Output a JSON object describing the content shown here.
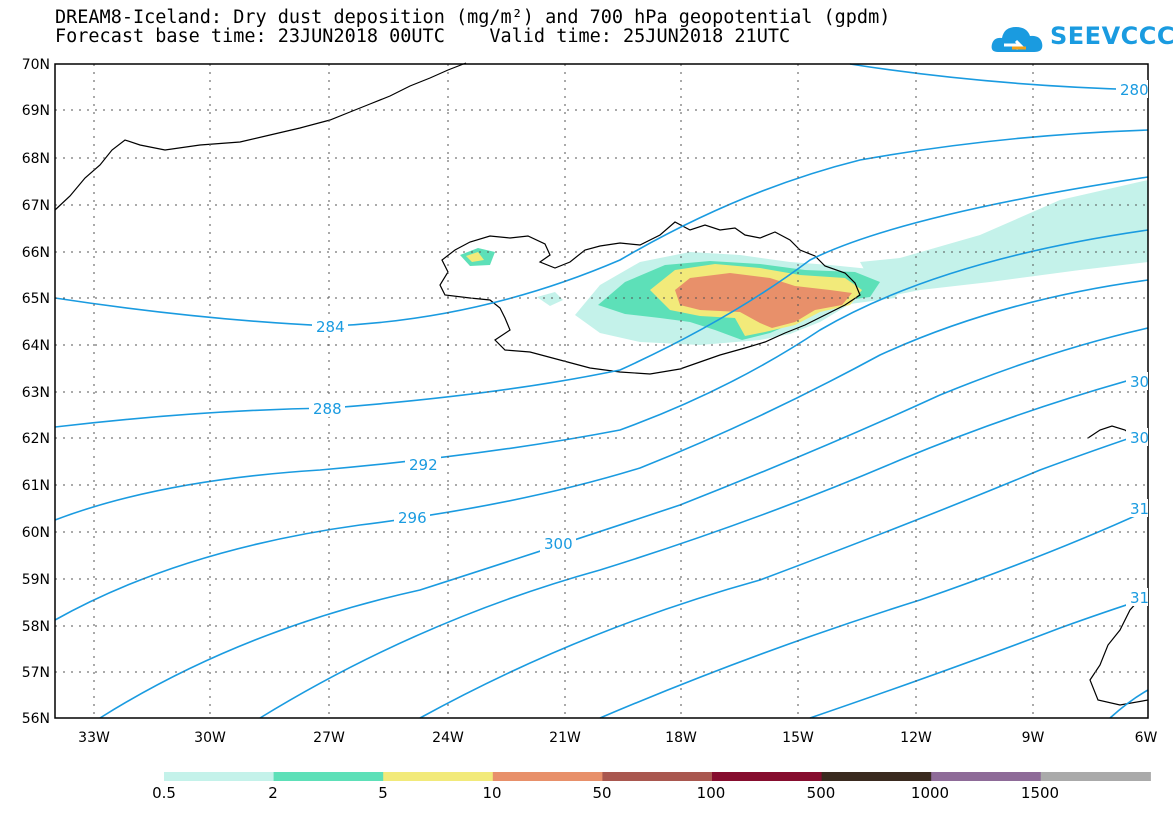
{
  "title_line1": "DREAM8-Iceland: Dry dust deposition (mg/m²) and 700 hPa geopotential (gpdm)",
  "title_line2": "Forecast base time: 23JUN2018 00UTC    Valid time: 25JUN2018 21UTC",
  "logo_text": "SEEVCCC",
  "colors": {
    "contour": "#1a9be0",
    "coast": "#000000",
    "grid": "#555555"
  },
  "map": {
    "lon_range": [
      -34.5,
      -6
    ],
    "lat_range": [
      56,
      70
    ],
    "lat_labels": [
      "70N",
      "69N",
      "68N",
      "67N",
      "66N",
      "65N",
      "64N",
      "63N",
      "62N",
      "61N",
      "60N",
      "59N",
      "58N",
      "57N",
      "56N"
    ],
    "lon_labels": [
      "33W",
      "30W",
      "27W",
      "24W",
      "21W",
      "18W",
      "15W",
      "12W",
      "9W",
      "6W"
    ]
  },
  "contour_labels": [
    "280",
    "284",
    "288",
    "292",
    "296",
    "300",
    "30",
    "30",
    "31",
    "31"
  ],
  "legend": {
    "colors": [
      "#c4f2ea",
      "#5de0b8",
      "#f2ea7a",
      "#e8906a",
      "#a9574f",
      "#860d2e",
      "#3a2a1f",
      "#8e6b98",
      "#aaaaaa"
    ],
    "labels": [
      "0.5",
      "2",
      "5",
      "10",
      "50",
      "100",
      "500",
      "1000",
      "1500"
    ]
  }
}
